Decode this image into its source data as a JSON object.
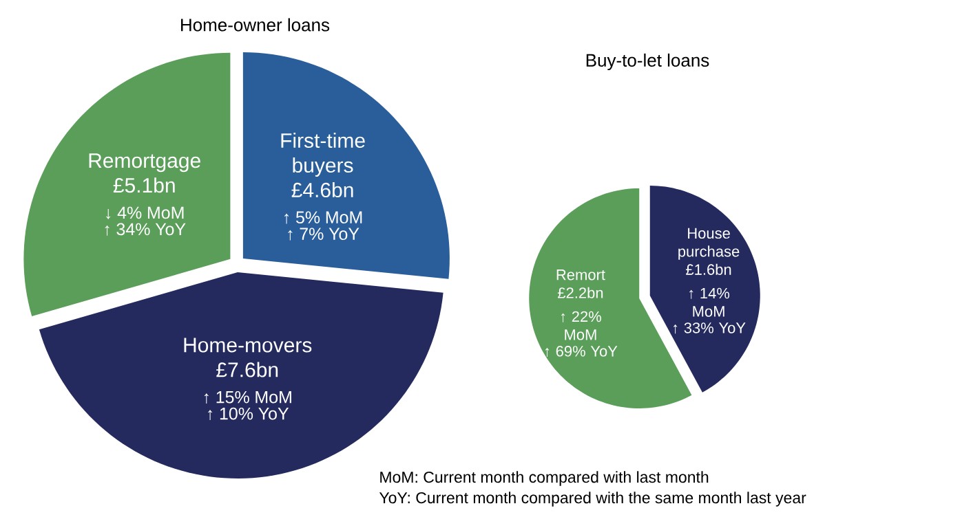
{
  "chart_data": [
    {
      "type": "pie",
      "title": "Home-owner loans",
      "categories": [
        "First-time buyers",
        "Home-movers",
        "Remortgage"
      ],
      "values": [
        4.6,
        7.6,
        5.1
      ],
      "colors": [
        "#2a5e9b",
        "#252a5e",
        "#5a9e5a"
      ],
      "value_labels": [
        "£4.6bn",
        "£7.6bn",
        "£5.1bn"
      ],
      "annotations": [
        "↑ 5% MoM",
        "↑ 7% YoY",
        "↑ 15% MoM",
        "↑ 10% YoY",
        "↓ 4% MoM",
        "↑ 34% YoY"
      ]
    },
    {
      "type": "pie",
      "title": "Buy-to-let loans",
      "categories": [
        "House purchase",
        "Remort"
      ],
      "values": [
        1.6,
        2.2
      ],
      "colors": [
        "#252a5e",
        "#5a9e5a"
      ],
      "value_labels": [
        "£1.6bn",
        "£2.2bn"
      ],
      "annotations": [
        "↑ 14% MoM",
        "↑ 33% YoY",
        "↑ 22% MoM",
        "↑ 69% YoY",
        "MoM: Current month compared with last month",
        "YoY: Current month compared with the same month last year"
      ]
    }
  ]
}
